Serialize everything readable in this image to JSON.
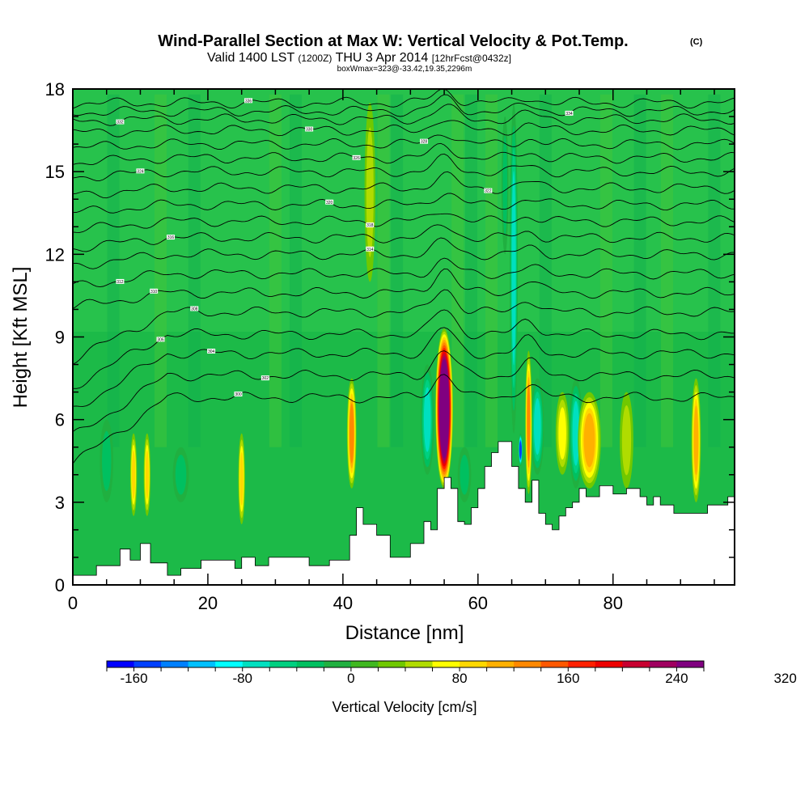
{
  "chart_data": {
    "type": "heatmap",
    "title": "Wind-Parallel Section at Max W: Vertical Velocity & Pot.Temp.",
    "title_mark": "(C)",
    "subtitle": {
      "valid_prefix": "Valid 1400 LST",
      "utc": "(1200Z)",
      "date": "THU 3 Apr 2014",
      "forecast": "[12hrFcst@0432z]"
    },
    "box_info": "boxWmax=323@-33.42,19.35,2296m",
    "xlabel": "Distance [nm]",
    "ylabel": "Height [Kft MSL]",
    "xlim": [
      0,
      98
    ],
    "ylim": [
      0,
      18
    ],
    "x_ticks": [
      {
        "value": 0,
        "label": "0"
      },
      {
        "value": 20,
        "label": "20"
      },
      {
        "value": 40,
        "label": "40"
      },
      {
        "value": 60,
        "label": "60"
      },
      {
        "value": 80,
        "label": "80"
      }
    ],
    "y_ticks": [
      {
        "value": 0,
        "label": "0"
      },
      {
        "value": 3,
        "label": "3"
      },
      {
        "value": 6,
        "label": "6"
      },
      {
        "value": 9,
        "label": "9"
      },
      {
        "value": 12,
        "label": "12"
      },
      {
        "value": 15,
        "label": "15"
      },
      {
        "value": 18,
        "label": "18"
      }
    ],
    "background_color": "#1cba48",
    "upper_background_color": "#32c850",
    "terrain": [
      [
        0,
        0.35
      ],
      [
        3.5,
        0.35
      ],
      [
        3.5,
        0.7
      ],
      [
        7,
        0.7
      ],
      [
        7,
        1.3
      ],
      [
        8.5,
        1.3
      ],
      [
        8.5,
        0.9
      ],
      [
        10,
        0.9
      ],
      [
        10,
        1.5
      ],
      [
        11.5,
        1.5
      ],
      [
        11.5,
        0.8
      ],
      [
        14,
        0.8
      ],
      [
        14,
        0.35
      ],
      [
        16,
        0.35
      ],
      [
        16,
        0.6
      ],
      [
        19,
        0.6
      ],
      [
        19,
        0.9
      ],
      [
        24,
        0.9
      ],
      [
        24,
        0.6
      ],
      [
        25,
        0.6
      ],
      [
        25,
        1.0
      ],
      [
        27,
        1.0
      ],
      [
        27,
        0.7
      ],
      [
        29,
        0.7
      ],
      [
        29,
        1.0
      ],
      [
        35,
        1.0
      ],
      [
        35,
        0.7
      ],
      [
        38,
        0.7
      ],
      [
        38,
        0.9
      ],
      [
        41,
        0.9
      ],
      [
        41,
        1.8
      ],
      [
        42,
        1.8
      ],
      [
        42,
        2.8
      ],
      [
        43,
        2.8
      ],
      [
        43,
        2.2
      ],
      [
        45,
        2.2
      ],
      [
        45,
        1.8
      ],
      [
        47,
        1.8
      ],
      [
        47,
        1.0
      ],
      [
        50,
        1.0
      ],
      [
        50,
        1.5
      ],
      [
        52,
        1.5
      ],
      [
        52,
        2.3
      ],
      [
        53,
        2.3
      ],
      [
        53,
        2.0
      ],
      [
        54,
        2.0
      ],
      [
        54,
        3.5
      ],
      [
        55,
        3.5
      ],
      [
        55,
        3.9
      ],
      [
        56,
        3.9
      ],
      [
        56,
        3.5
      ],
      [
        57,
        3.5
      ],
      [
        57,
        2.3
      ],
      [
        58,
        2.3
      ],
      [
        58,
        2.2
      ],
      [
        59,
        2.2
      ],
      [
        59,
        2.8
      ],
      [
        60,
        2.8
      ],
      [
        60,
        3.5
      ],
      [
        61,
        3.5
      ],
      [
        61,
        4.3
      ],
      [
        62,
        4.3
      ],
      [
        62,
        4.8
      ],
      [
        63,
        4.8
      ],
      [
        63,
        5.2
      ],
      [
        65,
        5.2
      ],
      [
        65,
        4.3
      ],
      [
        66,
        4.3
      ],
      [
        66,
        3.5
      ],
      [
        67,
        3.5
      ],
      [
        67,
        3.0
      ],
      [
        68,
        3.0
      ],
      [
        68,
        3.8
      ],
      [
        69,
        3.8
      ],
      [
        69,
        2.6
      ],
      [
        70,
        2.6
      ],
      [
        70,
        2.2
      ],
      [
        71,
        2.2
      ],
      [
        71,
        2.0
      ],
      [
        72,
        2.0
      ],
      [
        72,
        2.5
      ],
      [
        73,
        2.5
      ],
      [
        73,
        2.8
      ],
      [
        74,
        2.8
      ],
      [
        74,
        3.0
      ],
      [
        75,
        3.0
      ],
      [
        75,
        3.5
      ],
      [
        76,
        3.5
      ],
      [
        76,
        3.2
      ],
      [
        78,
        3.2
      ],
      [
        78,
        3.6
      ],
      [
        80,
        3.6
      ],
      [
        80,
        3.3
      ],
      [
        82,
        3.3
      ],
      [
        82,
        3.5
      ],
      [
        84,
        3.5
      ],
      [
        84,
        3.2
      ],
      [
        85,
        3.2
      ],
      [
        85,
        2.9
      ],
      [
        86,
        2.9
      ],
      [
        86,
        3.2
      ],
      [
        87,
        3.2
      ],
      [
        87,
        2.9
      ],
      [
        89,
        2.9
      ],
      [
        89,
        2.6
      ],
      [
        94,
        2.6
      ],
      [
        94,
        2.9
      ],
      [
        97,
        2.9
      ],
      [
        97,
        3.2
      ],
      [
        98,
        3.2
      ]
    ],
    "w_plumes": [
      {
        "x": 55,
        "y_top": 9.3,
        "y_bot": 3.5,
        "half_width": 1.3,
        "w": 323
      },
      {
        "x": 67.5,
        "y_top": 8.5,
        "y_bot": 3.3,
        "half_width": 0.5,
        "w": 110
      },
      {
        "x": 41.3,
        "y_top": 7.5,
        "y_bot": 3.5,
        "half_width": 0.7,
        "w": 110
      },
      {
        "x": 76.5,
        "y_top": 7.0,
        "y_bot": 3.5,
        "half_width": 1.7,
        "w": 100
      },
      {
        "x": 92.3,
        "y_top": 7.5,
        "y_bot": 3.0,
        "half_width": 0.7,
        "w": 100
      },
      {
        "x": 9.0,
        "y_top": 5.5,
        "y_bot": 2.5,
        "half_width": 0.5,
        "w": 85
      },
      {
        "x": 11.0,
        "y_top": 5.5,
        "y_bot": 2.5,
        "half_width": 0.5,
        "w": 85
      },
      {
        "x": 25.0,
        "y_top": 5.5,
        "y_bot": 2.2,
        "half_width": 0.5,
        "w": 85
      },
      {
        "x": 44.0,
        "y_top": 17.5,
        "y_bot": 11.0,
        "half_width": 0.8,
        "w": 45
      },
      {
        "x": 82.0,
        "y_top": 7.0,
        "y_bot": 3.5,
        "half_width": 1.0,
        "w": 45
      },
      {
        "x": 72.5,
        "y_top": 7.0,
        "y_bot": 4.0,
        "half_width": 1.0,
        "w": 50
      }
    ],
    "w_downdrafts": [
      {
        "x": 65.3,
        "y_top": 17.5,
        "y_bot": 5.5,
        "half_width": 0.6,
        "w": -70
      },
      {
        "x": 66.3,
        "y_top": 5.5,
        "y_bot": 4.3,
        "half_width": 0.3,
        "w": -155
      },
      {
        "x": 52.5,
        "y_top": 8.0,
        "y_bot": 4.0,
        "half_width": 1.0,
        "w": -70
      },
      {
        "x": 68.8,
        "y_top": 7.5,
        "y_bot": 4.0,
        "half_width": 1.0,
        "w": -70
      },
      {
        "x": 74.5,
        "y_top": 7.5,
        "y_bot": 3.5,
        "half_width": 1.0,
        "w": -70
      },
      {
        "x": 58.0,
        "y_top": 5.0,
        "y_bot": 3.0,
        "half_width": 1.0,
        "w": -45
      },
      {
        "x": 5.0,
        "y_top": 6.0,
        "y_bot": 3.0,
        "half_width": 1.0,
        "w": -45
      },
      {
        "x": 16.0,
        "y_top": 5.0,
        "y_bot": 3.0,
        "half_width": 1.2,
        "w": -40
      },
      {
        "x": 64.0,
        "y_top": 17.0,
        "y_bot": 12.0,
        "half_width": 0.5,
        "w": -45
      }
    ],
    "theta_contours": [
      {
        "base_height": 6.8,
        "label": "300",
        "label_x": 24.5
      },
      {
        "base_height": 7.6,
        "label": "302",
        "label_x": 28.5
      },
      {
        "base_height": 8.4,
        "label": "304",
        "label_x": 20.5
      },
      {
        "base_height": 9.1,
        "label": "306",
        "label_x": 13.0
      },
      {
        "base_height": 9.9,
        "label": "308",
        "label_x": 18.0
      },
      {
        "base_height": 10.6,
        "label": "310",
        "label_x": 12.0
      },
      {
        "base_height": 11.3,
        "label": "312",
        "label_x": 7.0
      },
      {
        "base_height": 12.0,
        "label": "314",
        "label_x": 44.0
      },
      {
        "base_height": 12.6,
        "label": "316",
        "label_x": 14.5
      },
      {
        "base_height": 13.2,
        "label": "318",
        "label_x": 44.0
      },
      {
        "base_height": 13.8,
        "label": "320",
        "label_x": 38.0
      },
      {
        "base_height": 14.4,
        "label": "322",
        "label_x": 61.5
      },
      {
        "base_height": 15.0,
        "label": "324",
        "label_x": 10.0
      },
      {
        "base_height": 15.5,
        "label": "326",
        "label_x": 42.0
      },
      {
        "base_height": 16.0,
        "label": "328",
        "label_x": 52.0
      },
      {
        "base_height": 16.5,
        "label": "330",
        "label_x": 35.0
      },
      {
        "base_height": 16.9,
        "label": "332",
        "label_x": 7.0
      },
      {
        "base_height": 17.2,
        "label": "334",
        "label_x": 73.5
      },
      {
        "base_height": 17.5,
        "label": "336",
        "label_x": 26.0
      }
    ],
    "colorbar": {
      "label": "Vertical Velocity [cm/s]",
      "min": -180,
      "step": 20,
      "colors": [
        "#0000ff",
        "#0040ff",
        "#0080ff",
        "#00c0ff",
        "#00ffff",
        "#00e0c0",
        "#00d080",
        "#00c060",
        "#20b040",
        "#40b820",
        "#70c800",
        "#b0dc00",
        "#ffff00",
        "#ffd800",
        "#ffb000",
        "#ff8800",
        "#ff5800",
        "#ff2000",
        "#ee0000",
        "#c80030",
        "#a00060",
        "#800080"
      ],
      "tick_values": [
        -160,
        -80,
        0,
        80,
        160,
        240,
        320
      ],
      "tick_labels": [
        "-160",
        "-80",
        "0",
        "80",
        "160",
        "240",
        "320"
      ]
    }
  }
}
